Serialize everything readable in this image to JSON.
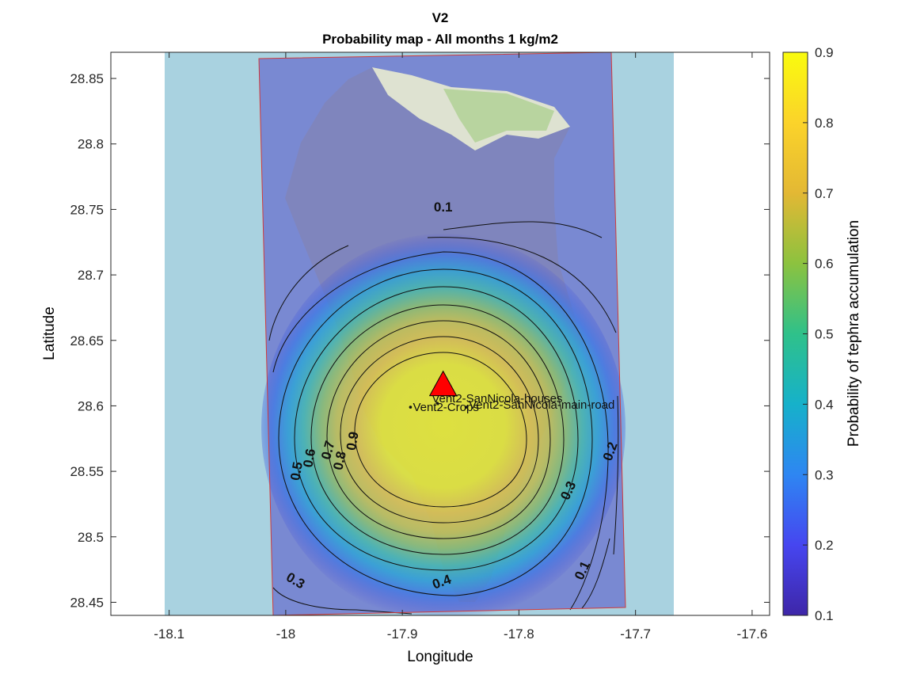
{
  "chart_data": {
    "type": "heatmap",
    "title": "V2",
    "subtitle": "Probability map - All months 1 kg/m2",
    "xlabel": "Longitude",
    "ylabel": "Latitude",
    "xlim": [
      -18.15,
      -17.585
    ],
    "ylim": [
      28.44,
      28.87
    ],
    "xticks": [
      -18.1,
      -18,
      -17.9,
      -17.8,
      -17.7,
      -17.6
    ],
    "xtick_labels": [
      "-18.1",
      "-18",
      "-17.9",
      "-17.8",
      "-17.7",
      "-17.6"
    ],
    "yticks": [
      28.45,
      28.5,
      28.55,
      28.6,
      28.65,
      28.7,
      28.75,
      28.8,
      28.85
    ],
    "ytick_labels": [
      "28.45",
      "28.5",
      "28.55",
      "28.6",
      "28.65",
      "28.7",
      "28.75",
      "28.8",
      "28.85"
    ],
    "colorbar": {
      "label": "Probability of tephra accumulation",
      "range": [
        0.1,
        0.9
      ],
      "ticks": [
        0.1,
        0.2,
        0.3,
        0.4,
        0.5,
        0.6,
        0.7,
        0.8,
        0.9
      ],
      "tick_labels": [
        "0.1",
        "0.2",
        "0.3",
        "0.4",
        "0.5",
        "0.6",
        "0.7",
        "0.8",
        "0.9"
      ],
      "colormap": "parula",
      "colors": [
        "#3e26a8",
        "#4646f0",
        "#2e86f2",
        "#16b1ca",
        "#2fc18a",
        "#8cc23f",
        "#e3b834",
        "#fbd32a",
        "#f9fb0e"
      ]
    },
    "vent": {
      "name": "Vent2",
      "lon": -17.865,
      "lat": 28.615,
      "color": "#ff0000",
      "marker": "triangle"
    },
    "points": [
      {
        "label": "Vent2-SanNicola-houses",
        "lon": -17.87,
        "lat": 28.602
      },
      {
        "label": "Vent2-Crops",
        "lon": -17.893,
        "lat": 28.599
      },
      {
        "label": "Vent2-SanNicola-main-road",
        "lon": -17.845,
        "lat": 28.599
      }
    ],
    "contour_labels": [
      {
        "text": "0.1",
        "lon": -17.865,
        "lat": 28.751
      },
      {
        "text": "0.2",
        "lon": -17.721,
        "lat": 28.565
      },
      {
        "text": "0.3",
        "lon": -17.757,
        "lat": 28.535
      },
      {
        "text": "0.5",
        "lon": -17.99,
        "lat": 28.55
      },
      {
        "text": "0.6",
        "lon": -17.979,
        "lat": 28.56
      },
      {
        "text": "0.7",
        "lon": -17.963,
        "lat": 28.566
      },
      {
        "text": "0.8",
        "lon": -17.953,
        "lat": 28.558
      },
      {
        "text": "0.9",
        "lon": -17.942,
        "lat": 28.573
      },
      {
        "text": "0.3",
        "lon": -17.992,
        "lat": 28.466
      },
      {
        "text": "0.4",
        "lon": -17.866,
        "lat": 28.465
      },
      {
        "text": "0.1",
        "lon": -17.745,
        "lat": 28.474
      }
    ],
    "domain_box": {
      "color": "#d13a3a"
    },
    "grid": false,
    "basemap": {
      "sea_color": "#a9d2e0"
    }
  }
}
